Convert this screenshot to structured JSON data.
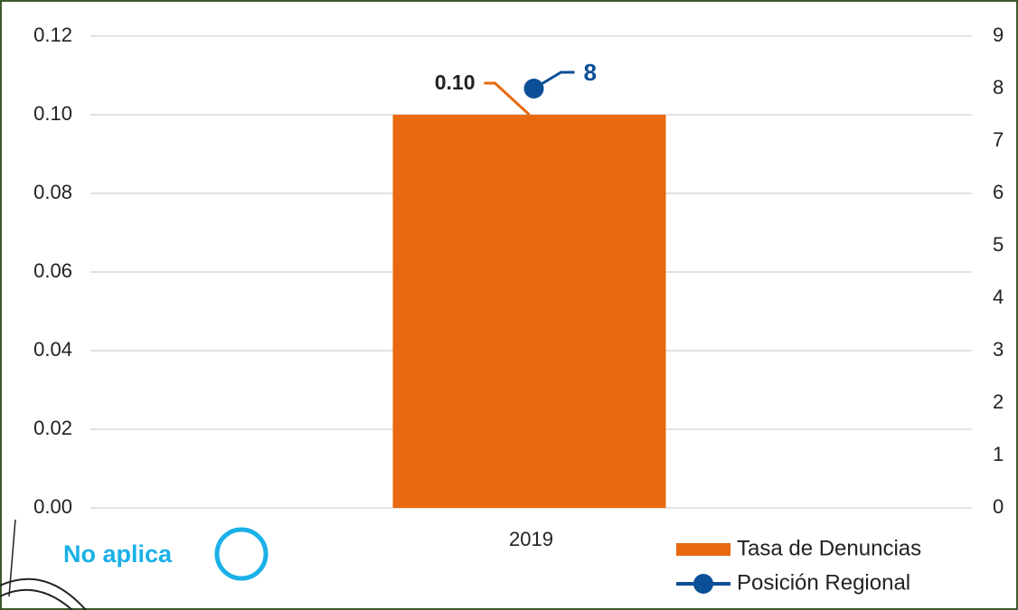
{
  "chart_data": {
    "type": "bar",
    "categories": [
      "2019"
    ],
    "series": [
      {
        "name": "Tasa de Denuncias",
        "type": "bar",
        "color": "#e8690f",
        "values": [
          0.1
        ],
        "value_labels": [
          "0.10"
        ]
      },
      {
        "name": "Posición Regional",
        "type": "line",
        "axis": "y2",
        "color": "#0b4f96",
        "values": [
          8
        ]
      }
    ],
    "ylim": [
      0,
      0.12
    ],
    "yticks": [
      {
        "value": 0,
        "label": "0.00"
      },
      0.02,
      0.04,
      0.06,
      0.08,
      {
        "value": 0.1,
        "label": "0.10"
      },
      0.12
    ],
    "y2lim": [
      0,
      9
    ],
    "y2ticks": [
      0,
      1,
      2,
      3,
      4,
      5,
      6,
      7,
      8,
      9
    ],
    "grid": true,
    "legend": "bottom-right",
    "annotation": "No aplica",
    "annotation_color": "#1ab0e8"
  }
}
